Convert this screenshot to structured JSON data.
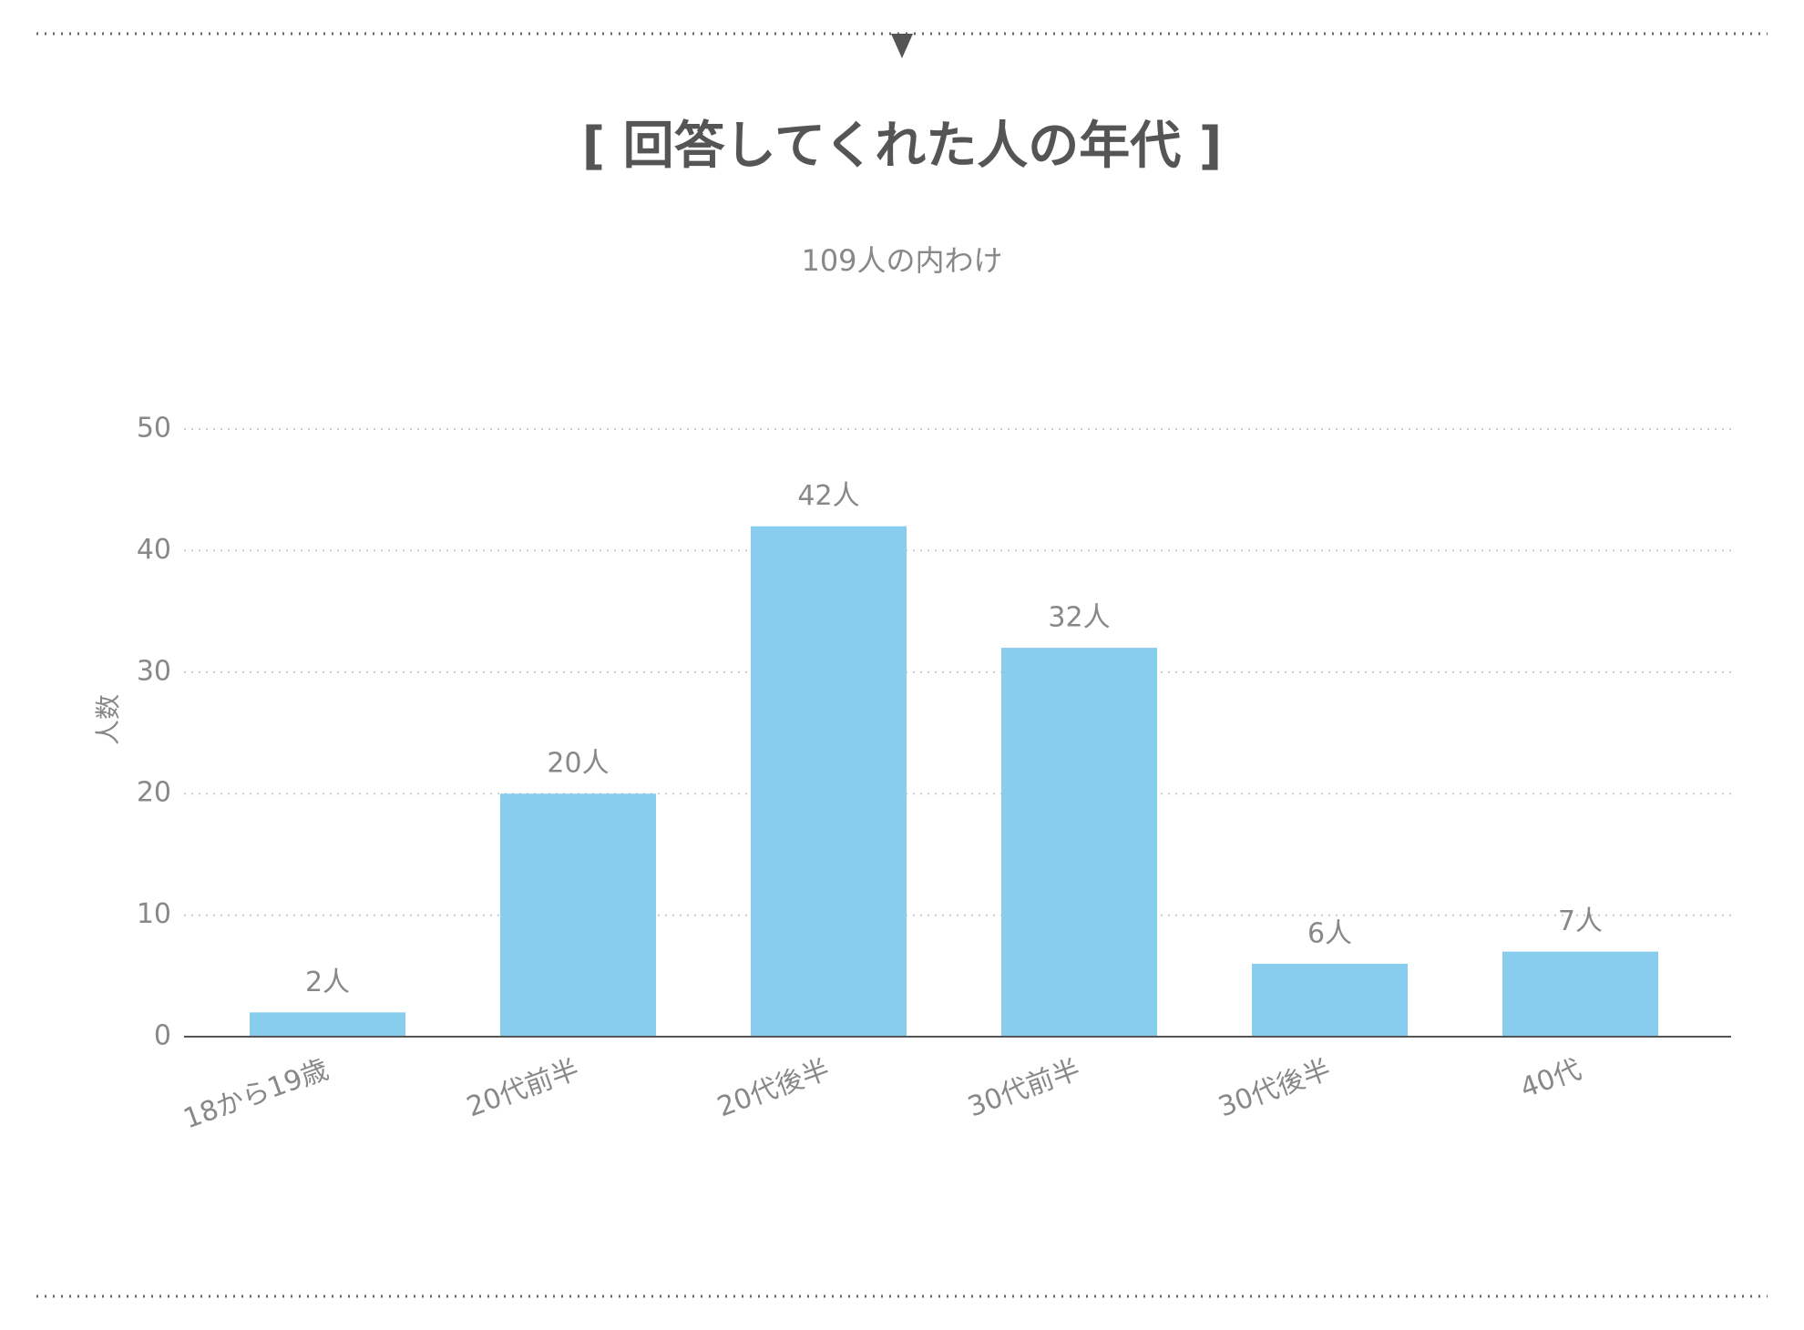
{
  "chart_data": {
    "type": "bar",
    "title": "[ 回答してくれた人の年代 ]",
    "subtitle": "109人の内わけ",
    "y_label": "人数",
    "categories": [
      "18から19歳",
      "20代前半",
      "20代後半",
      "30代前半",
      "30代後半",
      "40代"
    ],
    "values": [
      2,
      20,
      42,
      32,
      6,
      7
    ],
    "value_labels": [
      "2人",
      "20人",
      "42人",
      "32人",
      "6人",
      "7人"
    ],
    "color": "#89cdee",
    "ylim": [
      0,
      50
    ],
    "yticks": [
      0,
      10,
      20,
      30,
      40,
      50
    ],
    "grid": true
  }
}
